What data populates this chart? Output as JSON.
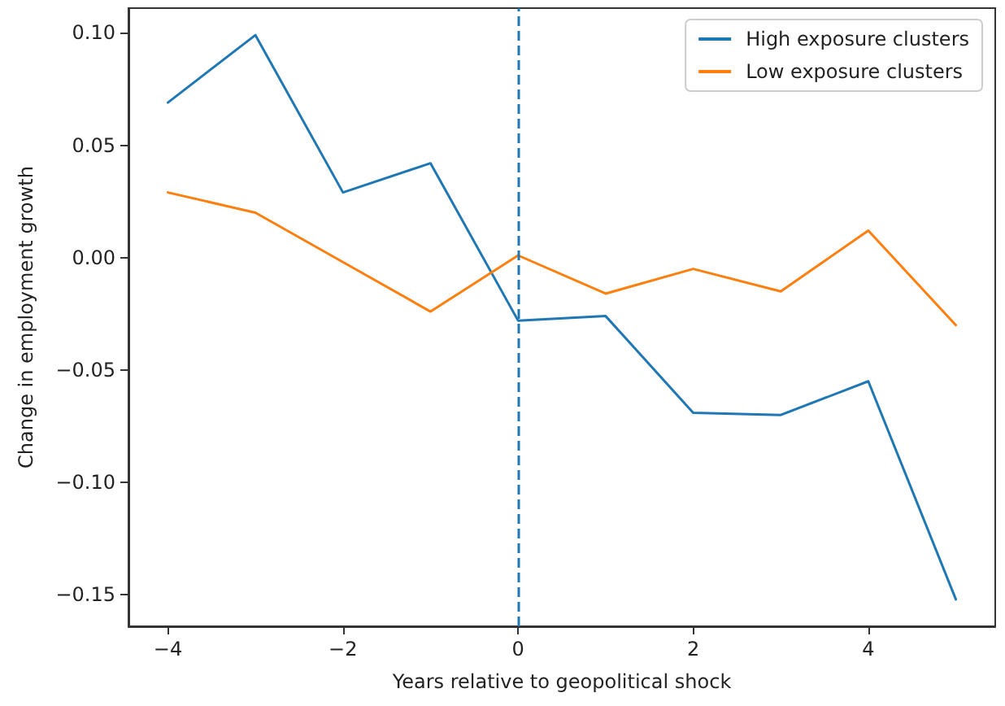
{
  "chart_data": {
    "type": "line",
    "xlabel": "Years relative to geopolitical shock",
    "ylabel": "Change in employment growth",
    "x": [
      -4,
      -3,
      -2,
      -1,
      0,
      1,
      2,
      3,
      4,
      5
    ],
    "series": [
      {
        "name": "High exposure clusters",
        "color": "#1f77b4",
        "values": [
          0.069,
          0.099,
          0.029,
          0.042,
          -0.028,
          -0.026,
          -0.069,
          -0.07,
          -0.055,
          -0.152
        ]
      },
      {
        "name": "Low exposure clusters",
        "color": "#ff7f0e",
        "values": [
          0.029,
          0.02,
          -0.002,
          -0.024,
          0.001,
          -0.016,
          -0.005,
          -0.015,
          0.012,
          -0.03
        ]
      }
    ],
    "xlim": [
      -4.45,
      5.45
    ],
    "xticks": [
      {
        "value": -4,
        "label": "−4"
      },
      {
        "value": -2,
        "label": "−2"
      },
      0,
      2,
      4
    ],
    "ylim": [
      -0.164,
      0.111
    ],
    "yticks": [
      {
        "value": -0.15,
        "label": "−0.15"
      },
      {
        "value": -0.1,
        "label": "−0.10"
      },
      {
        "value": -0.05,
        "label": "−0.05"
      },
      {
        "value": 0,
        "label": "0.00"
      },
      {
        "value": 0.05,
        "label": "0.05"
      },
      {
        "value": 0.1,
        "label": "0.10"
      }
    ],
    "ref_lines": [
      {
        "axis": "x",
        "value": 0,
        "color": "#1f77b4",
        "line_style": "dashed"
      }
    ],
    "legend": "top right",
    "grid": false,
    "marker": "none",
    "line_style": "solid"
  }
}
